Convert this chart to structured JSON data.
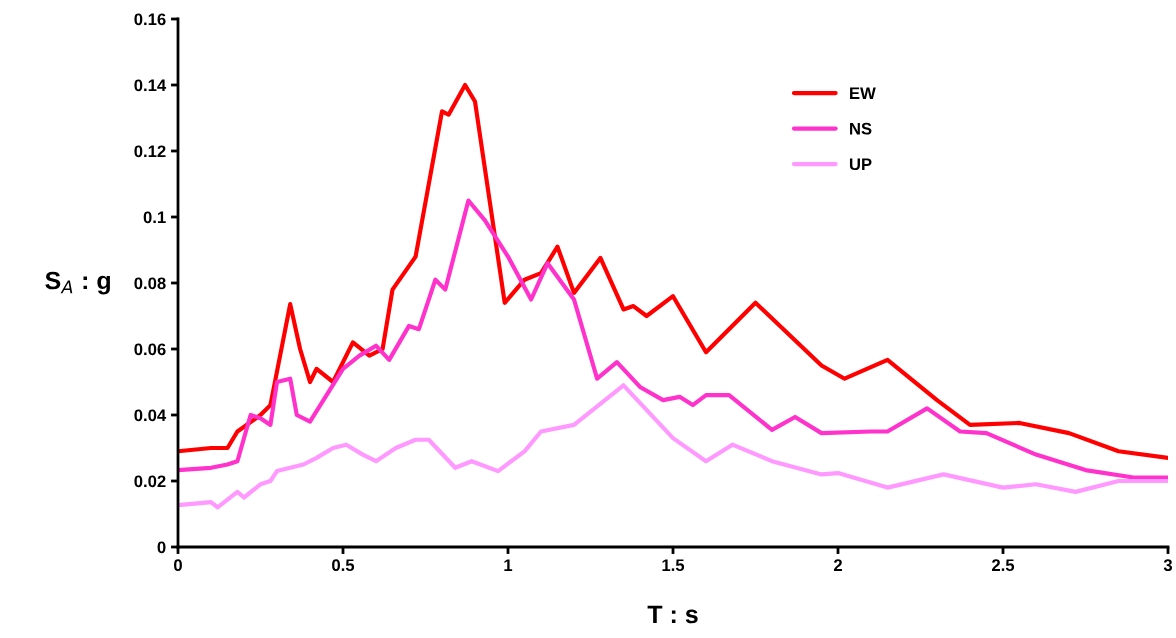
{
  "chart_data": {
    "type": "line",
    "xlabel": "T : s",
    "ylabel": "S$_{A}$ : g",
    "xlim": [
      0,
      3
    ],
    "xticks": [
      0,
      0.5,
      1,
      1.5,
      2,
      2.5,
      3
    ],
    "ylim": [
      0,
      0.16
    ],
    "yticks": [
      0,
      0.02,
      0.04,
      0.06,
      0.08,
      0.1,
      0.12,
      0.14,
      0.16
    ],
    "grid": false,
    "legend": "top right",
    "marker": "none",
    "line_style": "solid",
    "series": [
      {
        "name": "EW",
        "color": "#ff0000",
        "x": [
          0,
          0.1,
          0.15,
          0.18,
          0.25,
          0.28,
          0.34,
          0.37,
          0.4,
          0.42,
          0.47,
          0.53,
          0.58,
          0.62,
          0.65,
          0.72,
          0.8,
          0.82,
          0.87,
          0.9,
          0.99,
          1.05,
          1.1,
          1.15,
          1.2,
          1.28,
          1.35,
          1.38,
          1.42,
          1.5,
          1.6,
          1.75,
          1.95,
          2.02,
          2.15,
          2.3,
          2.4,
          2.55,
          2.7,
          2.85,
          3.0
        ],
        "values": [
          0.029,
          0.03,
          0.03,
          0.035,
          0.04,
          0.043,
          0.0736,
          0.06,
          0.05,
          0.054,
          0.05,
          0.062,
          0.058,
          0.06,
          0.078,
          0.088,
          0.132,
          0.131,
          0.14,
          0.135,
          0.074,
          0.081,
          0.083,
          0.091,
          0.077,
          0.0876,
          0.072,
          0.073,
          0.07,
          0.076,
          0.059,
          0.074,
          0.055,
          0.051,
          0.0567,
          0.0445,
          0.037,
          0.0376,
          0.0345,
          0.029,
          0.027
        ]
      },
      {
        "name": "NS",
        "color": "#ff33cc",
        "x": [
          0,
          0.1,
          0.15,
          0.18,
          0.22,
          0.25,
          0.28,
          0.3,
          0.34,
          0.36,
          0.4,
          0.5,
          0.55,
          0.6,
          0.64,
          0.7,
          0.73,
          0.78,
          0.81,
          0.88,
          0.93,
          1.0,
          1.07,
          1.12,
          1.2,
          1.27,
          1.33,
          1.4,
          1.47,
          1.52,
          1.56,
          1.6,
          1.67,
          1.8,
          1.87,
          1.95,
          2.1,
          2.15,
          2.27,
          2.37,
          2.45,
          2.6,
          2.75,
          2.9,
          3.0
        ],
        "values": [
          0.0233,
          0.024,
          0.025,
          0.026,
          0.04,
          0.039,
          0.037,
          0.05,
          0.051,
          0.04,
          0.038,
          0.054,
          0.058,
          0.061,
          0.0567,
          0.067,
          0.066,
          0.081,
          0.078,
          0.105,
          0.099,
          0.088,
          0.075,
          0.086,
          0.075,
          0.051,
          0.056,
          0.0485,
          0.0445,
          0.0455,
          0.043,
          0.046,
          0.046,
          0.0355,
          0.0394,
          0.0345,
          0.035,
          0.035,
          0.042,
          0.035,
          0.0345,
          0.028,
          0.0233,
          0.021,
          0.021
        ]
      },
      {
        "name": "UP",
        "color": "#ff99ff",
        "x": [
          0,
          0.1,
          0.12,
          0.18,
          0.2,
          0.25,
          0.28,
          0.3,
          0.38,
          0.42,
          0.47,
          0.51,
          0.56,
          0.6,
          0.66,
          0.72,
          0.76,
          0.84,
          0.89,
          0.97,
          1.05,
          1.1,
          1.2,
          1.35,
          1.5,
          1.6,
          1.68,
          1.8,
          1.95,
          2.0,
          2.15,
          2.32,
          2.5,
          2.6,
          2.72,
          2.85,
          3.0
        ],
        "values": [
          0.0127,
          0.0136,
          0.012,
          0.0167,
          0.015,
          0.019,
          0.02,
          0.023,
          0.025,
          0.027,
          0.03,
          0.031,
          0.028,
          0.026,
          0.03,
          0.0325,
          0.0325,
          0.024,
          0.026,
          0.023,
          0.029,
          0.035,
          0.037,
          0.049,
          0.033,
          0.026,
          0.031,
          0.026,
          0.022,
          0.0224,
          0.018,
          0.022,
          0.018,
          0.019,
          0.0167,
          0.02,
          0.02
        ]
      }
    ]
  }
}
